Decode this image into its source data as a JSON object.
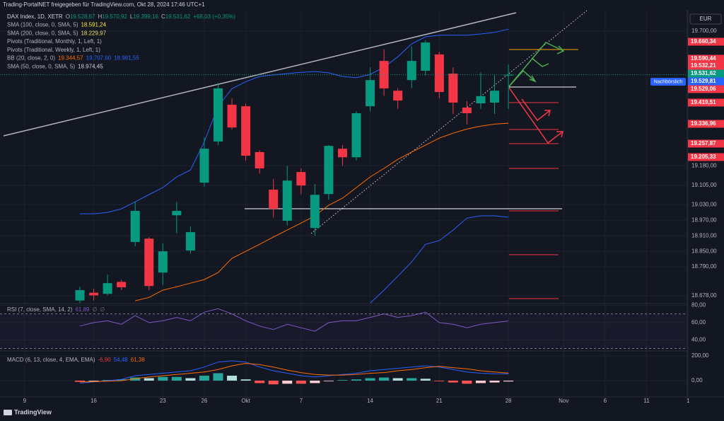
{
  "header": {
    "title": "Trading-PortalNET freigegeben für TradingView.com, Okt 28, 2024 17:46 UTC+1"
  },
  "currency": "EUR",
  "session_label": "Nachbörslich",
  "brand": "TradingView",
  "time_axis": {
    "labels": [
      "9",
      "16",
      "23",
      "26",
      "Okt",
      "7",
      "14",
      "21",
      "28",
      "Nov",
      "6",
      "11",
      "1"
    ]
  },
  "chart_data": [
    {
      "type": "candlestick",
      "title": "DAX Index, 1D, XETR",
      "ohlc_legend": [
        {
          "key": "O",
          "value": "19.528,67"
        },
        {
          "key": "H",
          "value": "19.570,92"
        },
        {
          "key": "L",
          "value": "19.399,16"
        },
        {
          "key": "C",
          "value": "19.531,62"
        }
      ],
      "change": "+68,03 (+0,35%)",
      "indicators": [
        {
          "name": "SMA (100, close, 0, SMA, 5)",
          "readout": [
            "18.591,24"
          ],
          "readout_colors": [
            "#ffeb3b"
          ]
        },
        {
          "name": "SMA (200, close, 0, SMA, 5)",
          "readout": [
            "18.229,97"
          ],
          "readout_colors": [
            "#f5e16a"
          ]
        },
        {
          "name": "Pivots (Traditional, Monthly, 1, Left, 1)",
          "readout": [],
          "readout_colors": []
        },
        {
          "name": "Pivots (Traditional, Weekly, 1, Left, 1)",
          "readout": [],
          "readout_colors": []
        },
        {
          "name": "BB (20, close, 2, 0)",
          "readout": [
            "19.344,57",
            "19.707,60",
            "18.981,55"
          ],
          "readout_colors": [
            "#ff6d00",
            "#2962ff",
            "#2962ff"
          ]
        },
        {
          "name": "SMA (50, close, 0, SMA, 5)",
          "readout": [
            "18.974,45"
          ],
          "readout_colors": [
            "#d1d4dc"
          ]
        }
      ],
      "up_color": "#089981",
      "down_color": "#f23645",
      "open": [
        18660,
        18690,
        18686,
        18732,
        18886,
        18899,
        18768,
        18989,
        18853,
        19115,
        19274,
        19416,
        19410,
        19233,
        19088,
        18968,
        19156,
        18940,
        19071,
        19246,
        19213,
        19410,
        19585,
        19470,
        19511,
        19547,
        19610,
        19536,
        19405,
        19421,
        19424,
        19528.67
      ],
      "high": [
        18713,
        18705,
        18760,
        18740,
        19040,
        18905,
        18880,
        19040,
        18945,
        19290,
        19500,
        19440,
        19420,
        19240,
        19130,
        19180,
        19170,
        19110,
        19260,
        19260,
        19390,
        19560,
        19630,
        19480,
        19640,
        19665,
        19620,
        19560,
        19430,
        19540,
        19530,
        19570.92
      ],
      "low": [
        18650,
        18660,
        18680,
        18700,
        18870,
        18700,
        18720,
        18920,
        18840,
        19100,
        19260,
        19320,
        19200,
        19150,
        18980,
        18950,
        19070,
        18910,
        19050,
        19180,
        19200,
        19390,
        19450,
        19400,
        19480,
        19530,
        19440,
        19380,
        19340,
        19400,
        19380,
        19399.16
      ],
      "close": [
        18700,
        18680,
        18727,
        18711,
        19006,
        18716,
        18850,
        19006,
        18924,
        19246,
        19479,
        19328,
        19219,
        19170,
        19014,
        19123,
        19104,
        19068,
        19257,
        19213,
        19383,
        19511,
        19479,
        19432,
        19585,
        19656,
        19465,
        19424,
        19383,
        19449,
        19470,
        19531.62
      ],
      "bb_upper": {
        "color": "#2962ff",
        "values": [
          18995,
          18995,
          19000,
          19014,
          19041,
          19069,
          19096,
          19137,
          19164,
          19273,
          19410,
          19478,
          19505,
          19525,
          19531,
          19536,
          19541,
          19544,
          19539,
          19525,
          19520,
          19533,
          19560,
          19601,
          19651,
          19678,
          19684,
          19684,
          19684,
          19689,
          19695,
          19707.6
        ]
      },
      "bb_basis": {
        "color": "#ff6d00",
        "values": [
          null,
          null,
          null,
          null,
          18659,
          18672,
          18700,
          18713,
          18727,
          18741,
          18768,
          18823,
          18850,
          18877,
          18905,
          18932,
          18959,
          18987,
          19028,
          19055,
          19096,
          19137,
          19170,
          19205,
          19233,
          19260,
          19287,
          19306,
          19322,
          19333,
          19341,
          19344.57
        ]
      },
      "bb_lower": {
        "color": "#2962ff",
        "values": [
          null,
          null,
          null,
          null,
          null,
          null,
          null,
          null,
          null,
          null,
          null,
          null,
          null,
          null,
          null,
          null,
          null,
          null,
          null,
          null,
          null,
          18650,
          18700,
          18754,
          18809,
          18877,
          18891,
          18932,
          18978,
          18987,
          18987,
          18981.55
        ]
      },
      "ylim": [
        18651,
        19771
      ],
      "yticks": [
        {
          "value": 19700,
          "label": "19.700,00"
        },
        {
          "value": 19180,
          "label": "19.180,00"
        },
        {
          "value": 19105,
          "label": "19.105,00"
        },
        {
          "value": 19030,
          "label": "19.030,00"
        },
        {
          "value": 18970,
          "label": "18.970,00"
        },
        {
          "value": 18910,
          "label": "18.910,00"
        },
        {
          "value": 18850,
          "label": "18.850,00"
        },
        {
          "value": 18790,
          "label": "18.790,00"
        },
        {
          "value": 18678,
          "label": "18.678,00"
        }
      ],
      "price_labels": [
        {
          "value": 19660.34,
          "label": "19.660,34",
          "color": "#f23645"
        },
        {
          "value": 19590.44,
          "label": "19.590,44",
          "color": "#f23645"
        },
        {
          "value": 19532.21,
          "label": "19.532,21",
          "color": "#f23645"
        },
        {
          "value": 19531.62,
          "label": "19.531,62",
          "color": "#089981"
        },
        {
          "value": 19529.81,
          "label": "19.529,81",
          "color": "#2962ff"
        },
        {
          "value": 19529.06,
          "label": "19.529,06",
          "color": "#f23645"
        },
        {
          "value": 19419.51,
          "label": "19.419,51",
          "color": "#f23645"
        },
        {
          "value": 19336.96,
          "label": "19.336,96",
          "color": "#f23645"
        },
        {
          "value": 19257.87,
          "label": "19.257,87",
          "color": "#f23645"
        },
        {
          "value": 19205.33,
          "label": "19.205,33",
          "color": "#f23645"
        }
      ]
    },
    {
      "type": "line",
      "title": "RSI (7, close, SMA, 14, 2)",
      "readout": [
        "61,89",
        "∅",
        "∅"
      ],
      "color": "#7e57c2",
      "values": [
        56,
        60,
        62,
        58,
        68,
        60,
        62,
        66,
        62,
        72,
        76,
        70,
        62,
        56,
        52,
        58,
        54,
        50,
        60,
        62,
        62,
        66,
        70,
        66,
        68,
        72,
        60,
        58,
        54,
        58,
        60,
        61.89
      ],
      "bands": [
        70,
        30
      ],
      "ylim": [
        28,
        82
      ],
      "yticks": [
        {
          "value": 80,
          "label": "80,00"
        },
        {
          "value": 60,
          "label": "60,00"
        },
        {
          "value": 40,
          "label": "40,00"
        }
      ]
    },
    {
      "type": "macd",
      "title": "MACD (6, 13, close, 4, EMA, EMA)",
      "readout": [
        "-6,90",
        "54,48",
        "61,38"
      ],
      "readout_colors": [
        "#f23645",
        "#2962ff",
        "#ff6d00"
      ],
      "histogram": [
        -10,
        -5,
        5,
        10,
        25,
        20,
        30,
        30,
        20,
        40,
        60,
        40,
        10,
        -20,
        -30,
        -25,
        -25,
        -20,
        -5,
        5,
        10,
        20,
        25,
        20,
        20,
        15,
        -5,
        -15,
        -25,
        -20,
        -15,
        -6.9
      ],
      "macd": {
        "color": "#2962ff",
        "values": [
          -20,
          -10,
          0,
          10,
          40,
          50,
          60,
          70,
          80,
          110,
          150,
          160,
          150,
          110,
          80,
          60,
          40,
          30,
          40,
          50,
          60,
          80,
          90,
          100,
          110,
          120,
          110,
          90,
          70,
          60,
          55,
          54.48
        ]
      },
      "signal": {
        "color": "#ff6d00",
        "values": [
          -10,
          -8,
          -5,
          0,
          15,
          30,
          40,
          50,
          60,
          70,
          90,
          120,
          140,
          130,
          110,
          85,
          65,
          50,
          45,
          45,
          50,
          60,
          65,
          80,
          90,
          105,
          115,
          105,
          95,
          80,
          70,
          61.38
        ]
      },
      "ylim": [
        -126,
        234
      ],
      "yticks": [
        {
          "value": 200,
          "label": "200,00"
        },
        {
          "value": 0,
          "label": "0,00"
        }
      ]
    }
  ]
}
